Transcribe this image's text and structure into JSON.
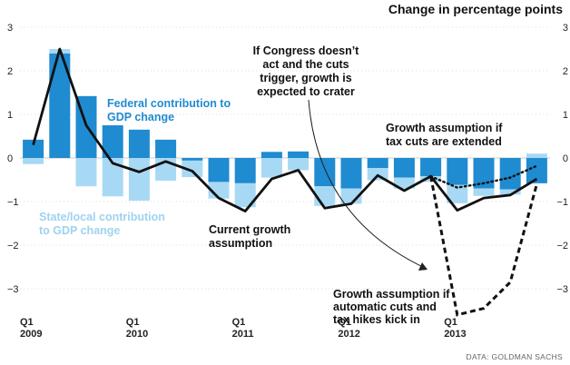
{
  "chart_data": {
    "type": "bar",
    "title": "Change in percentage points",
    "source": "DATA: GOLDMAN SACHS",
    "ylim": [
      -3.6,
      3.1
    ],
    "yticks": [
      3,
      2,
      1,
      0,
      -1,
      -2,
      -3
    ],
    "ytick_labels": [
      "3",
      "2",
      "1",
      "0",
      "−1",
      "−2",
      "−3"
    ],
    "quarters": [
      "2009Q1",
      "2009Q2",
      "2009Q3",
      "2009Q4",
      "2010Q1",
      "2010Q2",
      "2010Q3",
      "2010Q4",
      "2011Q1",
      "2011Q2",
      "2011Q3",
      "2011Q4",
      "2012Q1",
      "2012Q2",
      "2012Q3",
      "2012Q4",
      "2013Q1",
      "2013Q2",
      "2013Q3",
      "2013Q4"
    ],
    "x_labels": [
      {
        "index": 0,
        "lines": [
          "Q1",
          "2009"
        ]
      },
      {
        "index": 4,
        "lines": [
          "Q1",
          "2010"
        ]
      },
      {
        "index": 8,
        "lines": [
          "Q1",
          "2011"
        ]
      },
      {
        "index": 12,
        "lines": [
          "Q1",
          "2012"
        ]
      },
      {
        "index": 16,
        "lines": [
          "Q1",
          "2013"
        ]
      }
    ],
    "series": [
      {
        "name": "Federal contribution to GDP change",
        "color": "#1f8bd0",
        "values": [
          0.42,
          2.4,
          1.42,
          0.75,
          0.65,
          0.42,
          -0.06,
          -0.55,
          -0.58,
          0.14,
          0.15,
          -0.65,
          -0.7,
          -0.23,
          -0.45,
          -0.42,
          -0.62,
          -0.7,
          -0.72,
          -0.58
        ]
      },
      {
        "name": "State/local contribution to GDP change",
        "color": "#a8d9f4",
        "values": [
          -0.14,
          0.1,
          -0.65,
          -0.88,
          -0.98,
          -0.52,
          -0.38,
          -0.38,
          -0.55,
          -0.45,
          -0.28,
          -0.45,
          -0.35,
          -0.28,
          -0.25,
          -0.13,
          -0.42,
          -0.17,
          -0.12,
          0.1
        ]
      },
      {
        "name": "Current growth assumption",
        "color": "#111111",
        "style": "solid",
        "values": [
          0.3,
          2.5,
          0.75,
          -0.12,
          -0.32,
          -0.08,
          -0.3,
          -0.92,
          -1.22,
          -0.48,
          -0.28,
          -1.15,
          -1.05,
          -0.4,
          -0.75,
          -0.42,
          -1.2,
          -0.92,
          -0.85,
          -0.48
        ]
      },
      {
        "name": "Growth assumption if tax cuts are extended",
        "color": "#111111",
        "style": "dotted",
        "points": [
          [
            15,
            -0.42
          ],
          [
            16,
            -0.68
          ],
          [
            17,
            -0.58
          ],
          [
            18,
            -0.45
          ],
          [
            19,
            -0.18
          ]
        ]
      },
      {
        "name": "Growth assumption if automatic cuts and tax hikes kick in",
        "color": "#111111",
        "style": "dashed",
        "points": [
          [
            15,
            -0.42
          ],
          [
            16,
            -3.6
          ],
          [
            17,
            -3.45
          ],
          [
            18,
            -2.85
          ],
          [
            19,
            -0.6
          ]
        ]
      }
    ],
    "annotations": {
      "federal": [
        "Federal contribution to",
        "GDP change"
      ],
      "state": [
        "State/local contribution",
        "to GDP change"
      ],
      "current": [
        "Current growth",
        "assumption"
      ],
      "congress": [
        "If Congress doesn’t",
        "act and the cuts",
        "trigger, growth is",
        "expected to crater"
      ],
      "taxcuts": [
        "Growth assumption if",
        "tax cuts are extended"
      ],
      "automatic": [
        "Growth assumption if",
        "automatic cuts and",
        "tax hikes kick in"
      ]
    }
  }
}
